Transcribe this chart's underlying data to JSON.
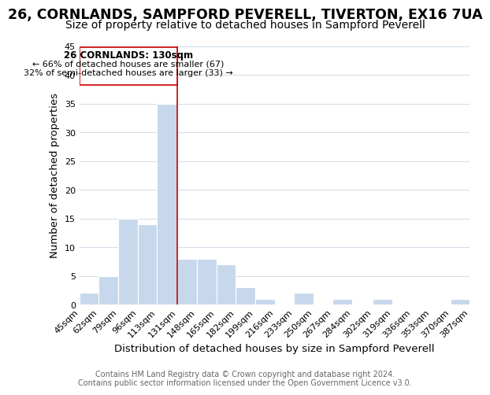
{
  "title": "26, CORNLANDS, SAMPFORD PEVERELL, TIVERTON, EX16 7UA",
  "subtitle": "Size of property relative to detached houses in Sampford Peverell",
  "xlabel": "Distribution of detached houses by size in Sampford Peverell",
  "ylabel": "Number of detached properties",
  "bar_color": "#c8d8ec",
  "bin_labels": [
    "45sqm",
    "62sqm",
    "79sqm",
    "96sqm",
    "113sqm",
    "131sqm",
    "148sqm",
    "165sqm",
    "182sqm",
    "199sqm",
    "216sqm",
    "233sqm",
    "250sqm",
    "267sqm",
    "284sqm",
    "302sqm",
    "319sqm",
    "336sqm",
    "353sqm",
    "370sqm",
    "387sqm"
  ],
  "bin_edges": [
    45,
    62,
    79,
    96,
    113,
    131,
    148,
    165,
    182,
    199,
    216,
    233,
    250,
    267,
    284,
    302,
    319,
    336,
    353,
    370,
    387
  ],
  "bar_heights": [
    2,
    5,
    15,
    14,
    35,
    8,
    8,
    7,
    3,
    1,
    0,
    2,
    0,
    1,
    0,
    1,
    0,
    0,
    0,
    1
  ],
  "vline_x": 131,
  "vline_color": "#cc0000",
  "ylim": [
    0,
    45
  ],
  "yticks": [
    0,
    5,
    10,
    15,
    20,
    25,
    30,
    35,
    40,
    45
  ],
  "annotation_title": "26 CORNLANDS: 130sqm",
  "annotation_line1": "← 66% of detached houses are smaller (67)",
  "annotation_line2": "32% of semi-detached houses are larger (33) →",
  "annotation_box_color": "#ffffff",
  "annotation_box_edge_color": "#cc0000",
  "footer_line1": "Contains HM Land Registry data © Crown copyright and database right 2024.",
  "footer_line2": "Contains public sector information licensed under the Open Government Licence v3.0.",
  "background_color": "#ffffff",
  "grid_color": "#d0dce8",
  "title_fontsize": 12.5,
  "subtitle_fontsize": 10,
  "axis_label_fontsize": 9.5,
  "tick_fontsize": 8,
  "footer_fontsize": 7,
  "ann_title_fontsize": 8.5,
  "ann_text_fontsize": 8
}
